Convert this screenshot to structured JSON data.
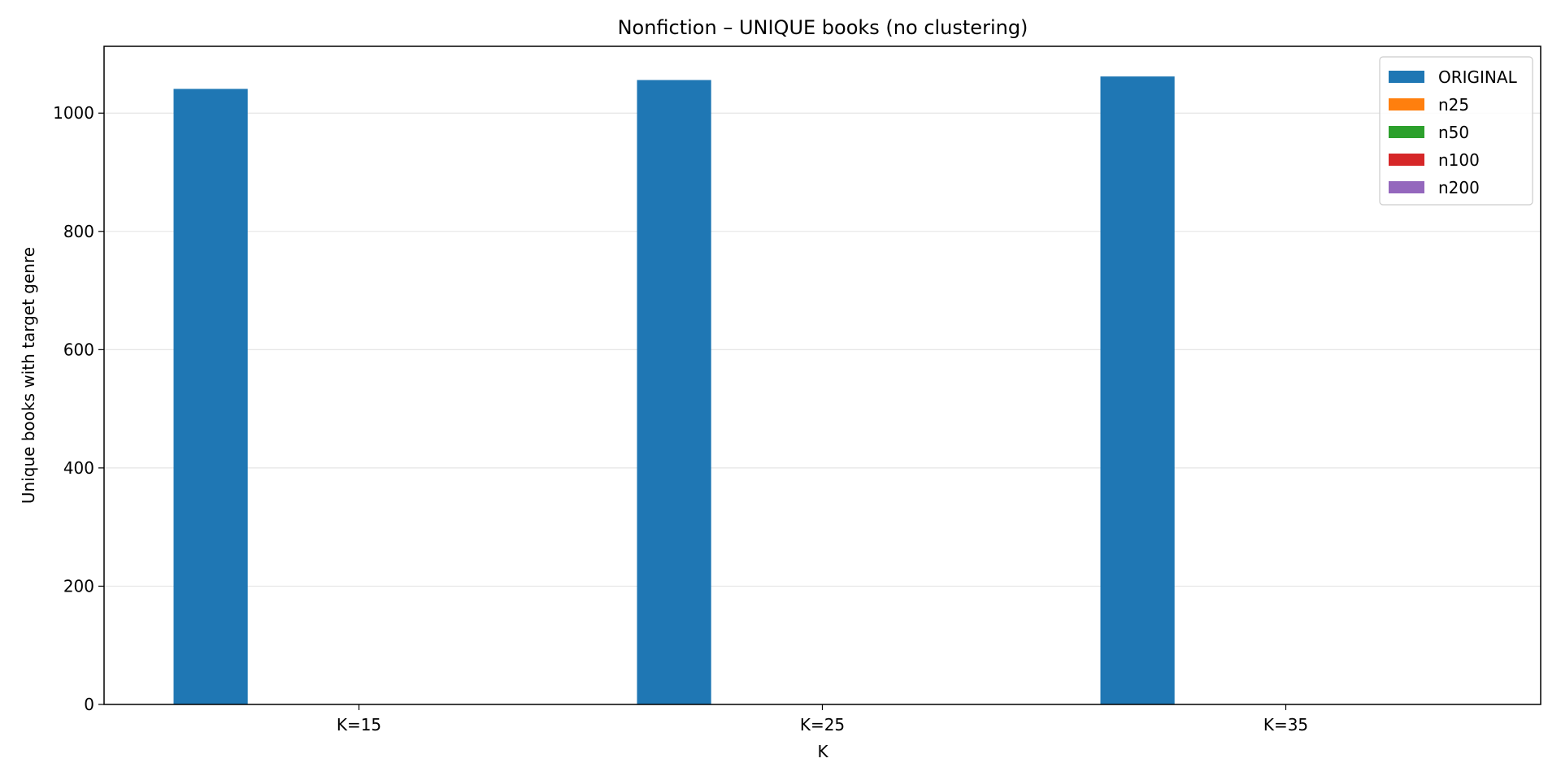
{
  "chart_data": {
    "type": "bar",
    "title": "Nonfiction – UNIQUE books (no clustering)",
    "xlabel": "K",
    "ylabel": "Unique books with target genre",
    "categories": [
      "K=15",
      "K=25",
      "K=35"
    ],
    "ylim": [
      0,
      1113
    ],
    "yticks": [
      0,
      200,
      400,
      600,
      800,
      1000
    ],
    "grid": "y",
    "legend_position": "top-right",
    "series": [
      {
        "name": "ORIGINAL",
        "color": "#1f77b4",
        "values": [
          1041,
          1056,
          1062
        ]
      },
      {
        "name": "n25",
        "color": "#ff7f0e",
        "values": [
          0,
          0,
          0
        ]
      },
      {
        "name": "n50",
        "color": "#2ca02c",
        "values": [
          0,
          0,
          0
        ]
      },
      {
        "name": "n100",
        "color": "#d62728",
        "values": [
          0,
          0,
          0
        ]
      },
      {
        "name": "n200",
        "color": "#9467bd",
        "values": [
          0,
          0,
          0
        ]
      }
    ]
  }
}
